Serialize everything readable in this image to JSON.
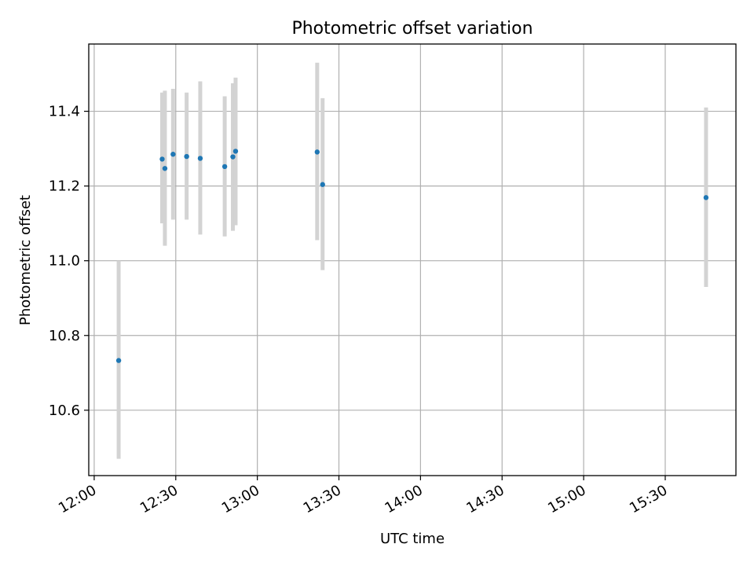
{
  "chart_data": {
    "type": "scatter",
    "title": "Photometric offset variation",
    "xlabel": "UTC time",
    "ylabel": "Photometric offset",
    "x_tick_labels": [
      "12:00",
      "12:30",
      "13:00",
      "13:30",
      "14:00",
      "14:30",
      "15:00",
      "15:30"
    ],
    "x_ticks": [
      "12:00",
      "12:30",
      "13:00",
      "13:30",
      "14:00",
      "14:30",
      "15:00",
      "15:30"
    ],
    "y_ticks": [
      10.6,
      10.8,
      11.0,
      11.2,
      11.4
    ],
    "y_tick_labels": [
      "10.6",
      "10.8",
      "11.0",
      "11.2",
      "11.4"
    ],
    "xlim": [
      "11:58",
      "15:56"
    ],
    "ylim": [
      10.425,
      11.58
    ],
    "grid": true,
    "marker_color": "#1f77b4",
    "errorbar_color": "#d3d3d3",
    "points": [
      {
        "x": "12:09",
        "y": 10.733,
        "y_low": 10.47,
        "y_high": 11.0
      },
      {
        "x": "12:25",
        "y": 11.272,
        "y_low": 11.1,
        "y_high": 11.45
      },
      {
        "x": "12:26",
        "y": 11.247,
        "y_low": 11.04,
        "y_high": 11.455
      },
      {
        "x": "12:29",
        "y": 11.285,
        "y_low": 11.11,
        "y_high": 11.46
      },
      {
        "x": "12:34",
        "y": 11.279,
        "y_low": 11.11,
        "y_high": 11.45
      },
      {
        "x": "12:39",
        "y": 11.274,
        "y_low": 11.07,
        "y_high": 11.48
      },
      {
        "x": "12:48",
        "y": 11.252,
        "y_low": 11.065,
        "y_high": 11.44
      },
      {
        "x": "12:51",
        "y": 11.278,
        "y_low": 11.08,
        "y_high": 11.475
      },
      {
        "x": "12:52",
        "y": 11.293,
        "y_low": 11.095,
        "y_high": 11.49
      },
      {
        "x": "13:22",
        "y": 11.291,
        "y_low": 11.055,
        "y_high": 11.53
      },
      {
        "x": "13:24",
        "y": 11.204,
        "y_low": 10.975,
        "y_high": 11.435
      },
      {
        "x": "15:45",
        "y": 11.169,
        "y_low": 10.93,
        "y_high": 11.41
      }
    ]
  }
}
